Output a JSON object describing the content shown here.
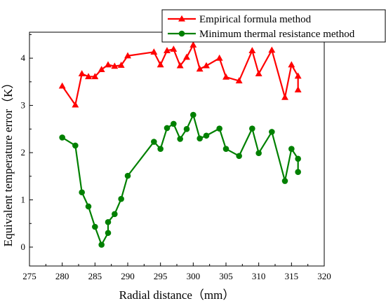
{
  "chart_data": {
    "type": "line",
    "xlabel": "Radial distance（mm）",
    "ylabel": "Equivalent temperature error（K）",
    "xlim": [
      275,
      320
    ],
    "ylim": [
      -0.4,
      4.55
    ],
    "x_ticks": [
      275,
      280,
      285,
      290,
      295,
      300,
      305,
      310,
      315,
      320
    ],
    "y_ticks": [
      0,
      1,
      2,
      3,
      4
    ],
    "x_tick_labels": [
      "275",
      "280",
      "285",
      "290",
      "295",
      "300",
      "305",
      "310",
      "315",
      "320"
    ],
    "y_tick_labels": [
      "0",
      "1",
      "2",
      "3",
      "4"
    ],
    "legend_position": "top-right",
    "series": [
      {
        "name": "Empirical formula method",
        "color": "#ff0000",
        "marker": "triangle",
        "points": [
          [
            280,
            3.41
          ],
          [
            282,
            3.01
          ],
          [
            283,
            3.67
          ],
          [
            284,
            3.61
          ],
          [
            285,
            3.61
          ],
          [
            286,
            3.76
          ],
          [
            287,
            3.86
          ],
          [
            288,
            3.83
          ],
          [
            289,
            3.85
          ],
          [
            290,
            4.05
          ],
          [
            294,
            4.13
          ],
          [
            295,
            3.86
          ],
          [
            296,
            4.16
          ],
          [
            297,
            4.19
          ],
          [
            298,
            3.84
          ],
          [
            299,
            4.02
          ],
          [
            300,
            4.28
          ],
          [
            301,
            3.77
          ],
          [
            302,
            3.84
          ],
          [
            304,
            4.0
          ],
          [
            305,
            3.6
          ],
          [
            307,
            3.52
          ],
          [
            309,
            4.16
          ],
          [
            310,
            3.67
          ],
          [
            312,
            4.17
          ],
          [
            314,
            3.17
          ],
          [
            315,
            3.86
          ],
          [
            316,
            3.62
          ],
          [
            316,
            3.33
          ]
        ]
      },
      {
        "name": "Minimum thermal resistance method",
        "color": "#008000",
        "marker": "circle",
        "points": [
          [
            280,
            2.32
          ],
          [
            282,
            2.15
          ],
          [
            283,
            1.16
          ],
          [
            284,
            0.86
          ],
          [
            285,
            0.43
          ],
          [
            286,
            0.05
          ],
          [
            287,
            0.3
          ],
          [
            287,
            0.53
          ],
          [
            288,
            0.7
          ],
          [
            289,
            1.02
          ],
          [
            290,
            1.51
          ],
          [
            294,
            2.23
          ],
          [
            295,
            2.08
          ],
          [
            296,
            2.52
          ],
          [
            297,
            2.61
          ],
          [
            298,
            2.29
          ],
          [
            299,
            2.5
          ],
          [
            300,
            2.8
          ],
          [
            301,
            2.3
          ],
          [
            302,
            2.36
          ],
          [
            304,
            2.51
          ],
          [
            305,
            2.08
          ],
          [
            307,
            1.93
          ],
          [
            309,
            2.51
          ],
          [
            310,
            1.99
          ],
          [
            312,
            2.44
          ],
          [
            314,
            1.4
          ],
          [
            315,
            2.08
          ],
          [
            316,
            1.87
          ],
          [
            316,
            1.59
          ]
        ]
      }
    ]
  }
}
